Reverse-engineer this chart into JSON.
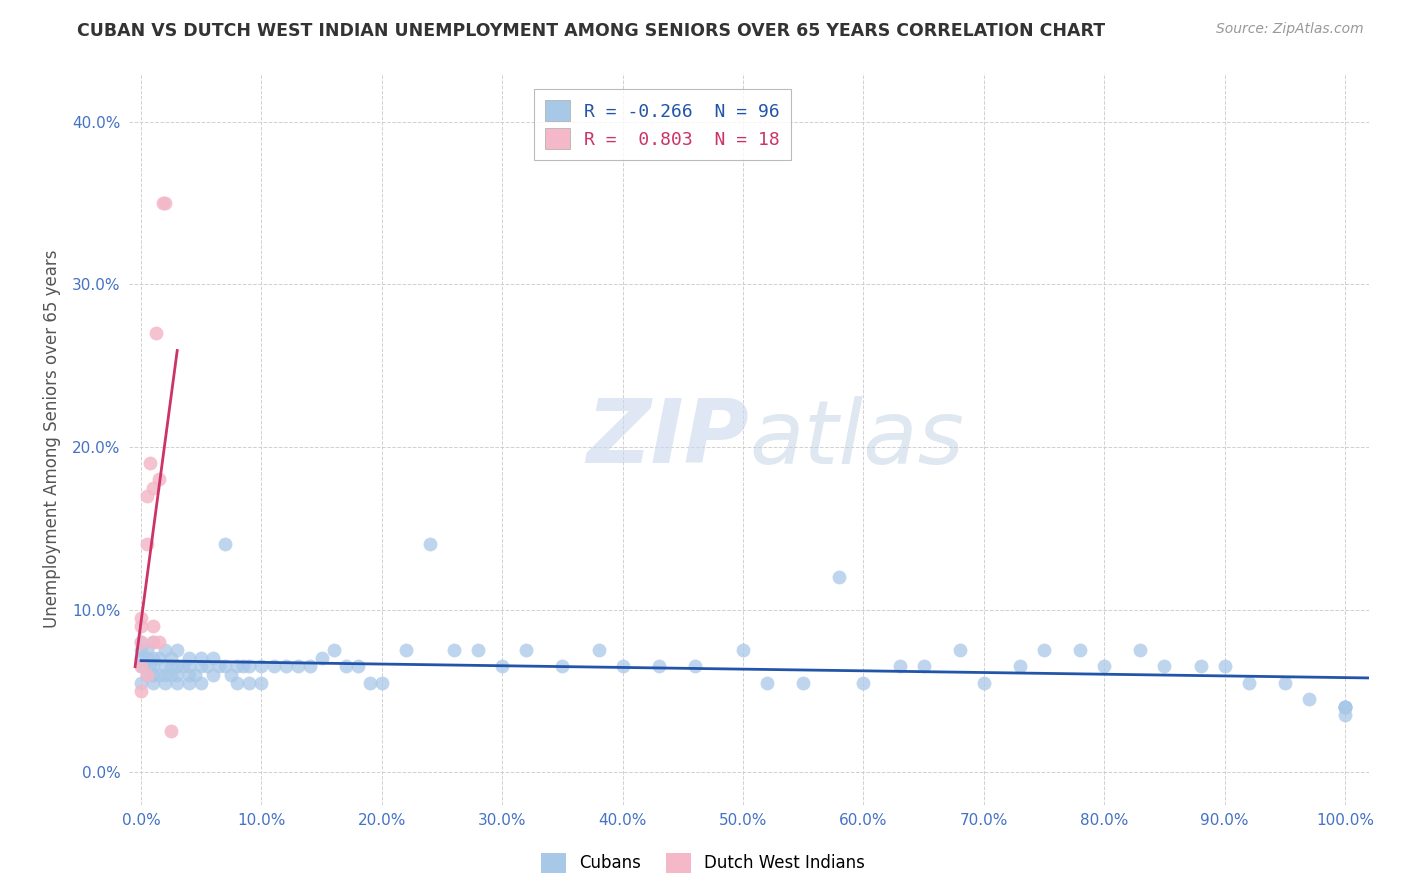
{
  "title": "CUBAN VS DUTCH WEST INDIAN UNEMPLOYMENT AMONG SENIORS OVER 65 YEARS CORRELATION CHART",
  "source": "Source: ZipAtlas.com",
  "ylabel": "Unemployment Among Seniors over 65 years",
  "xlabel": "",
  "xlim": [
    -0.01,
    1.02
  ],
  "ylim": [
    -0.02,
    0.43
  ],
  "xticks": [
    0.0,
    0.1,
    0.2,
    0.3,
    0.4,
    0.5,
    0.6,
    0.7,
    0.8,
    0.9,
    1.0
  ],
  "xticklabels": [
    "0.0%",
    "10.0%",
    "20.0%",
    "30.0%",
    "40.0%",
    "50.0%",
    "60.0%",
    "70.0%",
    "80.0%",
    "90.0%",
    "100.0%"
  ],
  "yticks": [
    0.0,
    0.1,
    0.2,
    0.3,
    0.4
  ],
  "yticklabels": [
    "0.0%",
    "10.0%",
    "20.0%",
    "30.0%",
    "40.0%"
  ],
  "cuban_color": "#a8c8e8",
  "dutch_color": "#f4b8c8",
  "cuban_line_color": "#2255aa",
  "dutch_line_color": "#cc3366",
  "cuban_R": -0.266,
  "cuban_N": 96,
  "dutch_R": 0.803,
  "dutch_N": 18,
  "background_color": "#ffffff",
  "grid_color": "#cccccc",
  "watermark_zip": "ZIP",
  "watermark_atlas": "atlas",
  "cuban_x": [
    0.0,
    0.0,
    0.0,
    0.0,
    0.0,
    0.005,
    0.005,
    0.005,
    0.007,
    0.01,
    0.01,
    0.01,
    0.01,
    0.01,
    0.015,
    0.015,
    0.02,
    0.02,
    0.02,
    0.02,
    0.025,
    0.025,
    0.025,
    0.03,
    0.03,
    0.03,
    0.03,
    0.035,
    0.04,
    0.04,
    0.04,
    0.04,
    0.045,
    0.05,
    0.05,
    0.05,
    0.055,
    0.06,
    0.06,
    0.065,
    0.07,
    0.07,
    0.075,
    0.08,
    0.08,
    0.085,
    0.09,
    0.09,
    0.1,
    0.1,
    0.11,
    0.12,
    0.13,
    0.14,
    0.15,
    0.16,
    0.17,
    0.18,
    0.19,
    0.2,
    0.22,
    0.24,
    0.26,
    0.28,
    0.3,
    0.32,
    0.35,
    0.38,
    0.4,
    0.43,
    0.46,
    0.5,
    0.52,
    0.55,
    0.58,
    0.6,
    0.63,
    0.65,
    0.68,
    0.7,
    0.73,
    0.75,
    0.78,
    0.8,
    0.83,
    0.85,
    0.88,
    0.9,
    0.92,
    0.95,
    0.97,
    1.0,
    1.0,
    1.0,
    1.0,
    1.0
  ],
  "cuban_y": [
    0.055,
    0.065,
    0.07,
    0.075,
    0.08,
    0.06,
    0.07,
    0.075,
    0.065,
    0.055,
    0.06,
    0.065,
    0.07,
    0.08,
    0.06,
    0.07,
    0.055,
    0.06,
    0.065,
    0.075,
    0.06,
    0.065,
    0.07,
    0.055,
    0.06,
    0.065,
    0.075,
    0.065,
    0.055,
    0.06,
    0.065,
    0.07,
    0.06,
    0.055,
    0.065,
    0.07,
    0.065,
    0.06,
    0.07,
    0.065,
    0.14,
    0.065,
    0.06,
    0.055,
    0.065,
    0.065,
    0.055,
    0.065,
    0.065,
    0.055,
    0.065,
    0.065,
    0.065,
    0.065,
    0.07,
    0.075,
    0.065,
    0.065,
    0.055,
    0.055,
    0.075,
    0.14,
    0.075,
    0.075,
    0.065,
    0.075,
    0.065,
    0.075,
    0.065,
    0.065,
    0.065,
    0.075,
    0.055,
    0.055,
    0.12,
    0.055,
    0.065,
    0.065,
    0.075,
    0.055,
    0.065,
    0.075,
    0.075,
    0.065,
    0.075,
    0.065,
    0.065,
    0.065,
    0.055,
    0.055,
    0.045,
    0.04,
    0.035,
    0.04,
    0.04,
    0.04
  ],
  "dutch_x": [
    0.0,
    0.0,
    0.0,
    0.0,
    0.0,
    0.005,
    0.005,
    0.005,
    0.007,
    0.01,
    0.01,
    0.01,
    0.012,
    0.015,
    0.015,
    0.018,
    0.02,
    0.025
  ],
  "dutch_y": [
    0.05,
    0.065,
    0.08,
    0.09,
    0.095,
    0.06,
    0.14,
    0.17,
    0.19,
    0.08,
    0.09,
    0.175,
    0.27,
    0.08,
    0.18,
    0.35,
    0.35,
    0.025
  ]
}
